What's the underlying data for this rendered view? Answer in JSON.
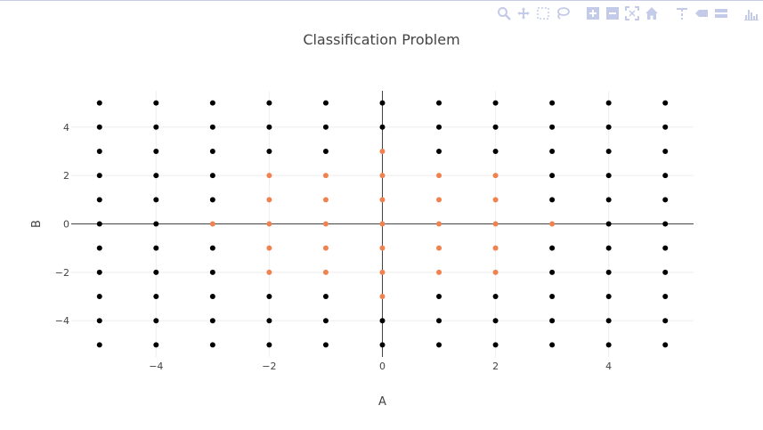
{
  "modebar": {
    "buttons": [
      "zoom-icon",
      "pan-icon",
      "box-select-icon",
      "lasso-select-icon",
      "zoom-in-icon",
      "zoom-out-icon",
      "autoscale-icon",
      "reset-axes-icon",
      "spike-lines-icon",
      "hover-closest-icon",
      "hover-compare-icon",
      "plotly-logo-icon"
    ]
  },
  "colors": {
    "class_outer": "#000000",
    "class_inner": "#f0824f",
    "axis_line": "#444444",
    "grid": "#eeeeee",
    "modebar_icon": "#c4cbe8"
  },
  "chart_data": {
    "type": "scatter",
    "title": "Classification Problem",
    "xlabel": "A",
    "ylabel": "B",
    "xlim": [
      -5.5,
      5.5
    ],
    "ylim": [
      -5.5,
      5.5
    ],
    "xticks": [
      -4,
      -2,
      0,
      2,
      4
    ],
    "yticks": [
      -4,
      -2,
      0,
      2,
      4
    ],
    "xtick_labels": [
      "−4",
      "−2",
      "0",
      "2",
      "4"
    ],
    "ytick_labels": [
      "−4",
      "−2",
      "0",
      "2",
      "4"
    ],
    "grid": true,
    "grid_x": [
      -5,
      5
    ],
    "grid_y": [
      -5,
      5
    ],
    "inner_rule": "|A| + |B| <= 4 and |A| <= 3 and |B| <= 3",
    "inner_points": [
      [
        -3,
        0
      ],
      [
        -2,
        -2
      ],
      [
        -2,
        -1
      ],
      [
        -2,
        0
      ],
      [
        -2,
        1
      ],
      [
        -2,
        2
      ],
      [
        -1,
        -2
      ],
      [
        -1,
        -1
      ],
      [
        -1,
        0
      ],
      [
        -1,
        1
      ],
      [
        -1,
        2
      ],
      [
        0,
        -3
      ],
      [
        0,
        -2
      ],
      [
        0,
        -1
      ],
      [
        0,
        0
      ],
      [
        0,
        1
      ],
      [
        0,
        2
      ],
      [
        0,
        3
      ],
      [
        1,
        -2
      ],
      [
        1,
        -1
      ],
      [
        1,
        0
      ],
      [
        1,
        1
      ],
      [
        1,
        2
      ],
      [
        2,
        -2
      ],
      [
        2,
        -1
      ],
      [
        2,
        0
      ],
      [
        2,
        1
      ],
      [
        2,
        2
      ],
      [
        3,
        0
      ]
    ]
  }
}
